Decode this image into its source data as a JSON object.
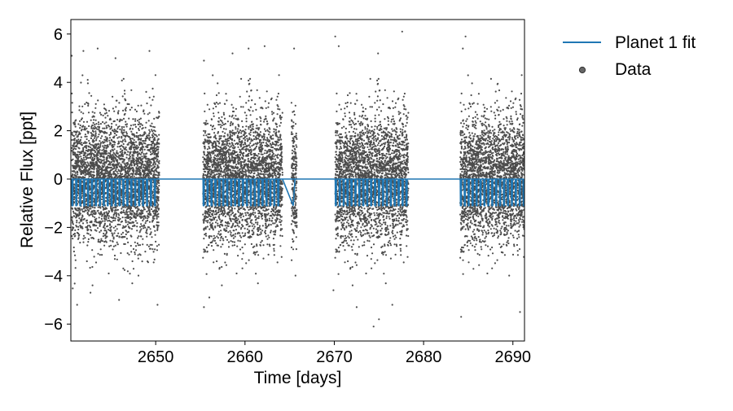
{
  "chart_data": {
    "type": "scatter",
    "title": "",
    "xlabel": "Time [days]",
    "ylabel": "Relative Flux [ppt]",
    "xlim": [
      2640.5,
      2691.3
    ],
    "ylim": [
      -6.7,
      6.6
    ],
    "x_ticks": [
      2650,
      2660,
      2670,
      2680,
      2690
    ],
    "y_ticks": [
      -6,
      -4,
      -2,
      0,
      2,
      4,
      6
    ],
    "x_tick_labels": [
      "2650",
      "2660",
      "2670",
      "2680",
      "2690"
    ],
    "y_tick_labels": [
      "−6",
      "−4",
      "−2",
      "0",
      "2",
      "4",
      "6"
    ],
    "grid": false,
    "legend_position": "outside-right",
    "legend": [
      {
        "label": "Planet 1 fit",
        "marker": "line",
        "color": "#1f77b4"
      },
      {
        "label": "Data",
        "marker": "dot",
        "color": "#000000"
      }
    ],
    "data_segments": [
      {
        "x_start": 2640.6,
        "x_end": 2650.4
      },
      {
        "x_start": 2655.3,
        "x_end": 2664.2
      },
      {
        "x_start": 2665.2,
        "x_end": 2665.8
      },
      {
        "x_start": 2670.1,
        "x_end": 2678.3
      },
      {
        "x_start": 2684.1,
        "x_end": 2691.3
      }
    ],
    "series": [
      {
        "name": "Data",
        "kind": "scatter",
        "color": "#000000",
        "flux_mean": 0.0,
        "flux_std": 1.3,
        "outliers": [
          {
            "x": 2640.6,
            "y": 5.1
          },
          {
            "x": 2641.9,
            "y": 5.3
          },
          {
            "x": 2643.5,
            "y": 5.4
          },
          {
            "x": 2645.5,
            "y": 5.0
          },
          {
            "x": 2649.3,
            "y": 5.3
          },
          {
            "x": 2655.4,
            "y": 4.9
          },
          {
            "x": 2658.6,
            "y": 5.2
          },
          {
            "x": 2660.4,
            "y": 5.4
          },
          {
            "x": 2662.2,
            "y": 5.5
          },
          {
            "x": 2665.5,
            "y": 5.4
          },
          {
            "x": 2670.1,
            "y": 5.9
          },
          {
            "x": 2670.5,
            "y": 5.5
          },
          {
            "x": 2674.9,
            "y": 5.2
          },
          {
            "x": 2677.6,
            "y": 6.1
          },
          {
            "x": 2684.4,
            "y": 5.4
          },
          {
            "x": 2684.7,
            "y": 5.9
          },
          {
            "x": 2641.2,
            "y": -5.2
          },
          {
            "x": 2642.7,
            "y": -4.7
          },
          {
            "x": 2645.9,
            "y": -5.0
          },
          {
            "x": 2650.2,
            "y": -5.2
          },
          {
            "x": 2655.4,
            "y": -5.3
          },
          {
            "x": 2656.0,
            "y": -4.9
          },
          {
            "x": 2669.9,
            "y": -4.6
          },
          {
            "x": 2672.5,
            "y": -5.3
          },
          {
            "x": 2674.4,
            "y": -6.1
          },
          {
            "x": 2675.0,
            "y": -5.8
          },
          {
            "x": 2676.5,
            "y": -5.2
          },
          {
            "x": 2684.2,
            "y": -5.7
          },
          {
            "x": 2690.8,
            "y": -5.5
          }
        ]
      },
      {
        "name": "Planet 1 fit",
        "kind": "transit-model",
        "color": "#1f77b4",
        "baseline": 0.0,
        "depth": -1.1,
        "period": 0.44,
        "duration": 0.14,
        "long_transit": {
          "x_start": 2664.2,
          "x_end": 2665.6
        }
      }
    ]
  }
}
